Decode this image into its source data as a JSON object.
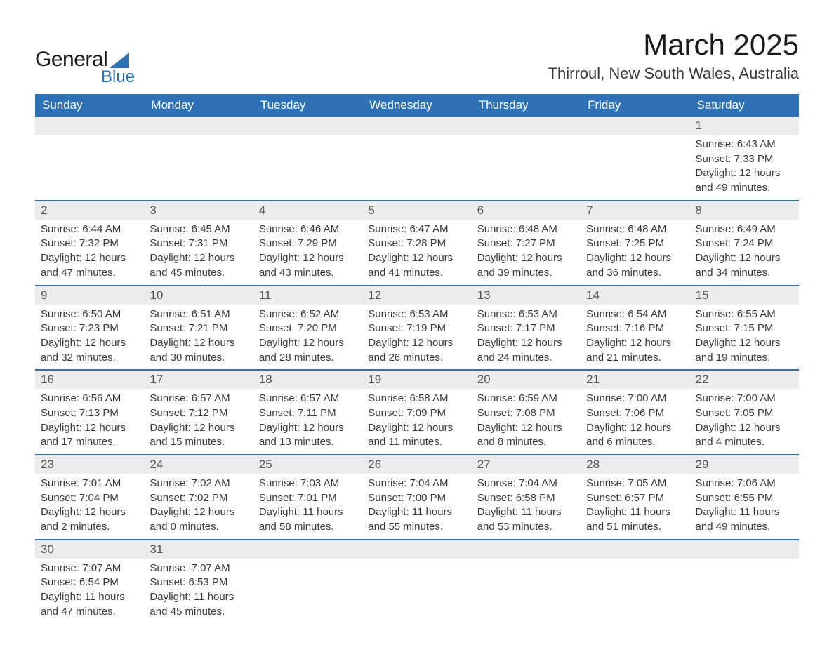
{
  "logo": {
    "text1": "General",
    "text2": "Blue",
    "accent_color": "#2e72b5"
  },
  "title": "March 2025",
  "location": "Thirroul, New South Wales, Australia",
  "colors": {
    "header_bg": "#2e72b5",
    "header_text": "#ffffff",
    "daynum_bg": "#ececec",
    "row_border": "#2e72b5",
    "body_text": "#3a3a3a"
  },
  "labels": {
    "sunrise": "Sunrise: ",
    "sunset": "Sunset: ",
    "daylight": "Daylight: "
  },
  "day_headers": [
    "Sunday",
    "Monday",
    "Tuesday",
    "Wednesday",
    "Thursday",
    "Friday",
    "Saturday"
  ],
  "weeks": [
    [
      {
        "empty": true
      },
      {
        "empty": true
      },
      {
        "empty": true
      },
      {
        "empty": true
      },
      {
        "empty": true
      },
      {
        "empty": true
      },
      {
        "n": "1",
        "sunrise": "6:43 AM",
        "sunset": "7:33 PM",
        "daylight": "12 hours and 49 minutes."
      }
    ],
    [
      {
        "n": "2",
        "sunrise": "6:44 AM",
        "sunset": "7:32 PM",
        "daylight": "12 hours and 47 minutes."
      },
      {
        "n": "3",
        "sunrise": "6:45 AM",
        "sunset": "7:31 PM",
        "daylight": "12 hours and 45 minutes."
      },
      {
        "n": "4",
        "sunrise": "6:46 AM",
        "sunset": "7:29 PM",
        "daylight": "12 hours and 43 minutes."
      },
      {
        "n": "5",
        "sunrise": "6:47 AM",
        "sunset": "7:28 PM",
        "daylight": "12 hours and 41 minutes."
      },
      {
        "n": "6",
        "sunrise": "6:48 AM",
        "sunset": "7:27 PM",
        "daylight": "12 hours and 39 minutes."
      },
      {
        "n": "7",
        "sunrise": "6:48 AM",
        "sunset": "7:25 PM",
        "daylight": "12 hours and 36 minutes."
      },
      {
        "n": "8",
        "sunrise": "6:49 AM",
        "sunset": "7:24 PM",
        "daylight": "12 hours and 34 minutes."
      }
    ],
    [
      {
        "n": "9",
        "sunrise": "6:50 AM",
        "sunset": "7:23 PM",
        "daylight": "12 hours and 32 minutes."
      },
      {
        "n": "10",
        "sunrise": "6:51 AM",
        "sunset": "7:21 PM",
        "daylight": "12 hours and 30 minutes."
      },
      {
        "n": "11",
        "sunrise": "6:52 AM",
        "sunset": "7:20 PM",
        "daylight": "12 hours and 28 minutes."
      },
      {
        "n": "12",
        "sunrise": "6:53 AM",
        "sunset": "7:19 PM",
        "daylight": "12 hours and 26 minutes."
      },
      {
        "n": "13",
        "sunrise": "6:53 AM",
        "sunset": "7:17 PM",
        "daylight": "12 hours and 24 minutes."
      },
      {
        "n": "14",
        "sunrise": "6:54 AM",
        "sunset": "7:16 PM",
        "daylight": "12 hours and 21 minutes."
      },
      {
        "n": "15",
        "sunrise": "6:55 AM",
        "sunset": "7:15 PM",
        "daylight": "12 hours and 19 minutes."
      }
    ],
    [
      {
        "n": "16",
        "sunrise": "6:56 AM",
        "sunset": "7:13 PM",
        "daylight": "12 hours and 17 minutes."
      },
      {
        "n": "17",
        "sunrise": "6:57 AM",
        "sunset": "7:12 PM",
        "daylight": "12 hours and 15 minutes."
      },
      {
        "n": "18",
        "sunrise": "6:57 AM",
        "sunset": "7:11 PM",
        "daylight": "12 hours and 13 minutes."
      },
      {
        "n": "19",
        "sunrise": "6:58 AM",
        "sunset": "7:09 PM",
        "daylight": "12 hours and 11 minutes."
      },
      {
        "n": "20",
        "sunrise": "6:59 AM",
        "sunset": "7:08 PM",
        "daylight": "12 hours and 8 minutes."
      },
      {
        "n": "21",
        "sunrise": "7:00 AM",
        "sunset": "7:06 PM",
        "daylight": "12 hours and 6 minutes."
      },
      {
        "n": "22",
        "sunrise": "7:00 AM",
        "sunset": "7:05 PM",
        "daylight": "12 hours and 4 minutes."
      }
    ],
    [
      {
        "n": "23",
        "sunrise": "7:01 AM",
        "sunset": "7:04 PM",
        "daylight": "12 hours and 2 minutes."
      },
      {
        "n": "24",
        "sunrise": "7:02 AM",
        "sunset": "7:02 PM",
        "daylight": "12 hours and 0 minutes."
      },
      {
        "n": "25",
        "sunrise": "7:03 AM",
        "sunset": "7:01 PM",
        "daylight": "11 hours and 58 minutes."
      },
      {
        "n": "26",
        "sunrise": "7:04 AM",
        "sunset": "7:00 PM",
        "daylight": "11 hours and 55 minutes."
      },
      {
        "n": "27",
        "sunrise": "7:04 AM",
        "sunset": "6:58 PM",
        "daylight": "11 hours and 53 minutes."
      },
      {
        "n": "28",
        "sunrise": "7:05 AM",
        "sunset": "6:57 PM",
        "daylight": "11 hours and 51 minutes."
      },
      {
        "n": "29",
        "sunrise": "7:06 AM",
        "sunset": "6:55 PM",
        "daylight": "11 hours and 49 minutes."
      }
    ],
    [
      {
        "n": "30",
        "sunrise": "7:07 AM",
        "sunset": "6:54 PM",
        "daylight": "11 hours and 47 minutes."
      },
      {
        "n": "31",
        "sunrise": "7:07 AM",
        "sunset": "6:53 PM",
        "daylight": "11 hours and 45 minutes."
      },
      {
        "empty": true
      },
      {
        "empty": true
      },
      {
        "empty": true
      },
      {
        "empty": true
      },
      {
        "empty": true
      }
    ]
  ]
}
